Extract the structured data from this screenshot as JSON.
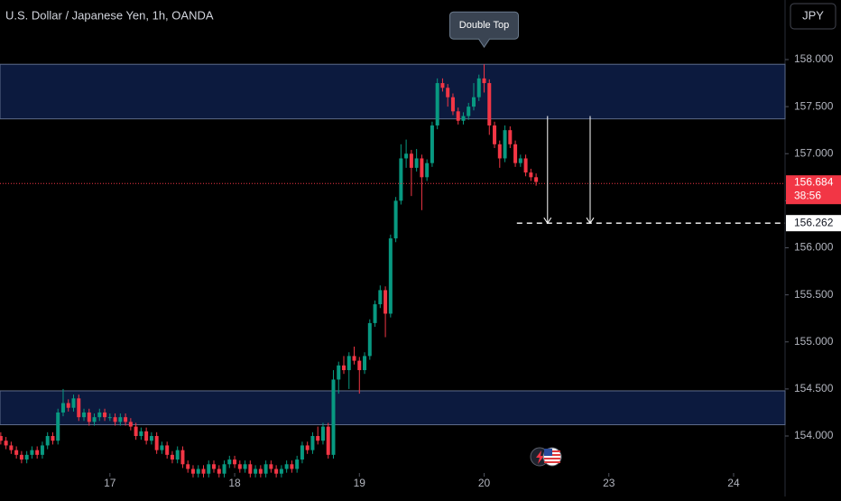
{
  "chart_data": {
    "type": "candlestick",
    "title": "U.S. Dollar / Japanese Yen, 1h, OANDA",
    "currency_button": "JPY",
    "annotation": {
      "text": "Double Top",
      "x": 72,
      "y": 157.95
    },
    "colors": {
      "up": "#089981",
      "down": "#f23645",
      "zone": "#0c1a3e",
      "zone_border": "#5d6b8a"
    },
    "xlim": [
      -21.15,
      129.9
    ],
    "xticks": [
      {
        "value": 0,
        "label": "17"
      },
      {
        "value": 24,
        "label": "18"
      },
      {
        "value": 48,
        "label": "19"
      },
      {
        "value": 72,
        "label": "20"
      },
      {
        "value": 96,
        "label": "23"
      },
      {
        "value": 120,
        "label": "24"
      }
    ],
    "ylim": [
      153.626,
      158.633
    ],
    "yticks": [
      {
        "value": 154,
        "label": "154.000"
      },
      {
        "value": 154.5,
        "label": "154.500"
      },
      {
        "value": 155,
        "label": "155.000"
      },
      {
        "value": 155.5,
        "label": "155.500"
      },
      {
        "value": 156,
        "label": "156.000"
      },
      {
        "value": 156.5,
        "label": "156.500"
      },
      {
        "value": 157,
        "label": "157.000"
      },
      {
        "value": 157.5,
        "label": "157.500"
      },
      {
        "value": 158,
        "label": "158.000"
      }
    ],
    "zones": [
      {
        "top": 157.95,
        "bottom": 157.37
      },
      {
        "top": 154.48,
        "bottom": 154.12
      }
    ],
    "arrows": [
      {
        "x": 84.2,
        "from": 157.4,
        "to": 156.262
      },
      {
        "x": 92.4,
        "from": 157.4,
        "to": 156.262
      }
    ],
    "target": {
      "value": 156.262,
      "start": 78.3
    },
    "last_price": {
      "value": 156.684,
      "countdown": "38:56"
    },
    "x": [
      -21,
      -20,
      -19,
      -18,
      -17,
      -16,
      -15,
      -14,
      -13,
      -12,
      -11,
      -10,
      -9,
      -8,
      -7,
      -6,
      -5,
      -4,
      -3,
      -2,
      -1,
      0,
      1,
      2,
      3,
      4,
      5,
      6,
      7,
      8,
      9,
      10,
      11,
      12,
      13,
      14,
      15,
      16,
      17,
      18,
      19,
      20,
      21,
      22,
      23,
      24,
      25,
      26,
      27,
      28,
      29,
      30,
      31,
      32,
      33,
      34,
      35,
      36,
      37,
      38,
      39,
      40,
      41,
      42,
      43,
      44,
      45,
      46,
      47,
      48,
      49,
      50,
      51,
      52,
      53,
      54,
      55,
      56,
      57,
      58,
      59,
      60,
      61,
      62,
      63,
      64,
      65,
      66,
      67,
      68,
      69,
      70,
      71,
      72,
      73,
      74,
      75,
      76,
      77,
      78,
      79,
      80,
      81,
      82
    ],
    "ohlc": [
      [
        154.0,
        154.04,
        153.91,
        153.95
      ],
      [
        153.95,
        153.99,
        153.86,
        153.9
      ],
      [
        153.9,
        153.94,
        153.81,
        153.85
      ],
      [
        153.85,
        153.89,
        153.76,
        153.8
      ],
      [
        153.8,
        153.84,
        153.71,
        153.75
      ],
      [
        153.75,
        153.84,
        153.71,
        153.8
      ],
      [
        153.8,
        153.89,
        153.76,
        153.85
      ],
      [
        153.85,
        153.89,
        153.76,
        153.8
      ],
      [
        153.8,
        153.94,
        153.76,
        153.9
      ],
      [
        153.9,
        154.04,
        153.86,
        154.0
      ],
      [
        154.0,
        154.04,
        153.91,
        153.95
      ],
      [
        153.95,
        154.29,
        153.91,
        154.25
      ],
      [
        154.25,
        154.5,
        154.21,
        154.35
      ],
      [
        154.35,
        154.39,
        154.26,
        154.3
      ],
      [
        154.3,
        154.44,
        154.26,
        154.4
      ],
      [
        154.4,
        154.44,
        154.16,
        154.2
      ],
      [
        154.2,
        154.29,
        154.16,
        154.25
      ],
      [
        154.25,
        154.29,
        154.11,
        154.15
      ],
      [
        154.15,
        154.24,
        154.11,
        154.2
      ],
      [
        154.2,
        154.29,
        154.16,
        154.25
      ],
      [
        154.25,
        154.29,
        154.16,
        154.2
      ],
      [
        154.2,
        154.24,
        154.16,
        154.2
      ],
      [
        154.2,
        154.24,
        154.11,
        154.15
      ],
      [
        154.15,
        154.24,
        154.11,
        154.2
      ],
      [
        154.2,
        154.24,
        154.11,
        154.15
      ],
      [
        154.15,
        154.19,
        154.06,
        154.1
      ],
      [
        154.1,
        154.14,
        153.96,
        154.0
      ],
      [
        154.0,
        154.09,
        153.96,
        154.05
      ],
      [
        154.05,
        154.09,
        153.91,
        153.95
      ],
      [
        153.95,
        154.04,
        153.91,
        154.0
      ],
      [
        154.0,
        154.04,
        153.81,
        153.85
      ],
      [
        153.85,
        153.94,
        153.81,
        153.9
      ],
      [
        153.9,
        153.94,
        153.76,
        153.8
      ],
      [
        153.8,
        153.84,
        153.71,
        153.75
      ],
      [
        153.75,
        153.89,
        153.71,
        153.85
      ],
      [
        153.85,
        153.89,
        153.66,
        153.7
      ],
      [
        153.7,
        153.74,
        153.61,
        153.65
      ],
      [
        153.65,
        153.69,
        153.56,
        153.6
      ],
      [
        153.6,
        153.69,
        153.56,
        153.65
      ],
      [
        153.65,
        153.69,
        153.56,
        153.6
      ],
      [
        153.6,
        153.74,
        153.56,
        153.7
      ],
      [
        153.7,
        153.74,
        153.61,
        153.65
      ],
      [
        153.65,
        153.69,
        153.56,
        153.6
      ],
      [
        153.6,
        153.74,
        153.56,
        153.7
      ],
      [
        153.7,
        153.79,
        153.66,
        153.75
      ],
      [
        153.75,
        153.79,
        153.66,
        153.7
      ],
      [
        153.7,
        153.74,
        153.61,
        153.65
      ],
      [
        153.65,
        153.74,
        153.61,
        153.7
      ],
      [
        153.7,
        153.74,
        153.56,
        153.6
      ],
      [
        153.6,
        153.69,
        153.56,
        153.65
      ],
      [
        153.65,
        153.69,
        153.56,
        153.6
      ],
      [
        153.6,
        153.74,
        153.56,
        153.7
      ],
      [
        153.7,
        153.74,
        153.61,
        153.65
      ],
      [
        153.65,
        153.69,
        153.56,
        153.6
      ],
      [
        153.6,
        153.69,
        153.56,
        153.65
      ],
      [
        153.65,
        153.74,
        153.61,
        153.7
      ],
      [
        153.7,
        153.74,
        153.61,
        153.65
      ],
      [
        153.65,
        153.79,
        153.61,
        153.75
      ],
      [
        153.75,
        153.94,
        153.71,
        153.9
      ],
      [
        153.9,
        153.94,
        153.81,
        153.85
      ],
      [
        153.85,
        154.04,
        153.81,
        154.0
      ],
      [
        154.0,
        154.1,
        153.91,
        153.95
      ],
      [
        153.95,
        154.14,
        153.91,
        154.1
      ],
      [
        154.1,
        154.14,
        153.76,
        153.8
      ],
      [
        153.8,
        154.7,
        153.76,
        154.6
      ],
      [
        154.6,
        154.79,
        154.45,
        154.75
      ],
      [
        154.75,
        154.85,
        154.66,
        154.7
      ],
      [
        154.7,
        154.89,
        154.5,
        154.85
      ],
      [
        154.85,
        154.95,
        154.76,
        154.8
      ],
      [
        154.8,
        154.84,
        154.45,
        154.7
      ],
      [
        154.7,
        154.89,
        154.66,
        154.85
      ],
      [
        154.85,
        155.24,
        154.81,
        155.2
      ],
      [
        155.2,
        155.44,
        155.16,
        155.4
      ],
      [
        155.4,
        155.6,
        155.36,
        155.55
      ],
      [
        155.55,
        155.59,
        155.05,
        155.3
      ],
      [
        155.3,
        156.14,
        155.26,
        156.1
      ],
      [
        156.1,
        156.54,
        156.06,
        156.5
      ],
      [
        156.5,
        157.1,
        156.46,
        156.95
      ],
      [
        156.95,
        157.15,
        156.85,
        157.0
      ],
      [
        157.0,
        157.04,
        156.55,
        156.85
      ],
      [
        156.85,
        157.05,
        156.81,
        156.95
      ],
      [
        156.95,
        156.99,
        156.4,
        156.75
      ],
      [
        156.75,
        156.94,
        156.71,
        156.9
      ],
      [
        156.9,
        157.34,
        156.86,
        157.3
      ],
      [
        157.3,
        157.8,
        157.26,
        157.75
      ],
      [
        157.75,
        157.8,
        157.66,
        157.7
      ],
      [
        157.7,
        157.74,
        157.5,
        157.6
      ],
      [
        157.6,
        157.64,
        157.41,
        157.45
      ],
      [
        157.45,
        157.49,
        157.31,
        157.35
      ],
      [
        157.35,
        157.44,
        157.31,
        157.4
      ],
      [
        157.4,
        157.54,
        157.36,
        157.5
      ],
      [
        157.5,
        157.75,
        157.46,
        157.6
      ],
      [
        157.6,
        157.84,
        157.56,
        157.8
      ],
      [
        157.8,
        157.95,
        157.65,
        157.75
      ],
      [
        157.75,
        157.79,
        157.2,
        157.3
      ],
      [
        157.3,
        157.34,
        157.06,
        157.1
      ],
      [
        157.1,
        157.14,
        156.85,
        156.95
      ],
      [
        156.95,
        157.3,
        156.91,
        157.25
      ],
      [
        157.25,
        157.29,
        157.06,
        157.1
      ],
      [
        157.1,
        157.14,
        156.86,
        156.9
      ],
      [
        156.9,
        156.99,
        156.86,
        156.95
      ],
      [
        156.95,
        156.99,
        156.76,
        156.8
      ],
      [
        156.8,
        156.84,
        156.71,
        156.75
      ],
      [
        156.75,
        156.79,
        156.66,
        156.7
      ]
    ]
  }
}
